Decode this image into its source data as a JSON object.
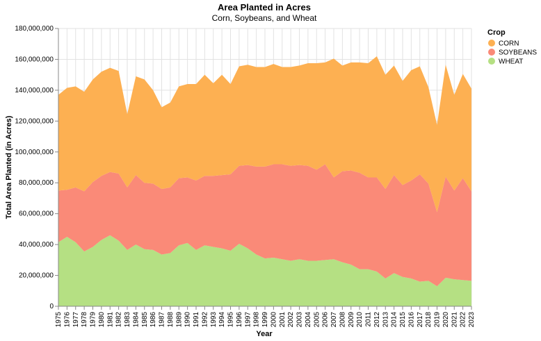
{
  "chart_data": {
    "type": "area",
    "stacked": true,
    "title": "Area Planted in Acres",
    "subtitle": "Corn, Soybeans, and Wheat",
    "xlabel": "Year",
    "ylabel": "Total Area Planted (in Acres)",
    "ylim": [
      0,
      180000000
    ],
    "yticks": [
      "0",
      "20,000,000",
      "40,000,000",
      "60,000,000",
      "80,000,000",
      "100,000,000",
      "120,000,000",
      "140,000,000",
      "160,000,000",
      "180,000,000"
    ],
    "grid": true,
    "legend_title": "Crop",
    "legend_position": "top-right",
    "x": [
      1975,
      1976,
      1977,
      1978,
      1979,
      1980,
      1981,
      1982,
      1983,
      1984,
      1985,
      1986,
      1987,
      1988,
      1989,
      1990,
      1991,
      1992,
      1993,
      1994,
      1995,
      1996,
      1997,
      1998,
      1999,
      2000,
      2001,
      2002,
      2003,
      2004,
      2005,
      2006,
      2007,
      2008,
      2009,
      2010,
      2011,
      2012,
      2013,
      2014,
      2015,
      2016,
      2017,
      2018,
      2019,
      2020,
      2021,
      2022,
      2023
    ],
    "series": [
      {
        "name": "WHEAT",
        "color": "#b5e083",
        "values": [
          41500000,
          45000000,
          41500000,
          35500000,
          38500000,
          43000000,
          46000000,
          42500000,
          36500000,
          40000000,
          37000000,
          36500000,
          33500000,
          34500000,
          39500000,
          41000000,
          36500000,
          39500000,
          38500000,
          37500000,
          36000000,
          40500000,
          37500000,
          33500000,
          31000000,
          31500000,
          30500000,
          29500000,
          30500000,
          29500000,
          29500000,
          30000000,
          30500000,
          28500000,
          27000000,
          24000000,
          24000000,
          22500000,
          18000000,
          21500000,
          19000000,
          18000000,
          16000000,
          16500000,
          13000000,
          18500000,
          17500000,
          17000000,
          16500000
        ]
      },
      {
        "name": "SOYBEANS",
        "color": "#fa8a78",
        "values": [
          33500000,
          30500000,
          35500000,
          39000000,
          42000000,
          41500000,
          41000000,
          43500000,
          40500000,
          45000000,
          43000000,
          43000000,
          42500000,
          42500000,
          43500000,
          42500000,
          45000000,
          45000000,
          46000000,
          47500000,
          49500000,
          50500000,
          54000000,
          57000000,
          59500000,
          60500000,
          61500000,
          61500000,
          61000000,
          61500000,
          59000000,
          62000000,
          53000000,
          59000000,
          61000000,
          62500000,
          59500000,
          61000000,
          58000000,
          63500000,
          59500000,
          63500000,
          69500000,
          63000000,
          48000000,
          65500000,
          57500000,
          66000000,
          58000000
        ]
      },
      {
        "name": "CORN",
        "color": "#fdb052",
        "values": [
          62000000,
          66000000,
          65500000,
          64500000,
          66500000,
          67500000,
          67500000,
          66500000,
          47500000,
          64000000,
          67000000,
          60500000,
          53000000,
          55000000,
          59500000,
          60500000,
          62500000,
          65500000,
          60000000,
          65000000,
          58500000,
          64500000,
          65000000,
          64500000,
          64500000,
          65000000,
          63000000,
          64000000,
          64500000,
          66500000,
          69000000,
          66000000,
          77000000,
          68500000,
          70000000,
          71500000,
          74000000,
          78500000,
          74000000,
          71000000,
          67500000,
          71500000,
          70000000,
          62500000,
          56500000,
          72500000,
          62000000,
          67500000,
          66500000
        ]
      }
    ]
  }
}
